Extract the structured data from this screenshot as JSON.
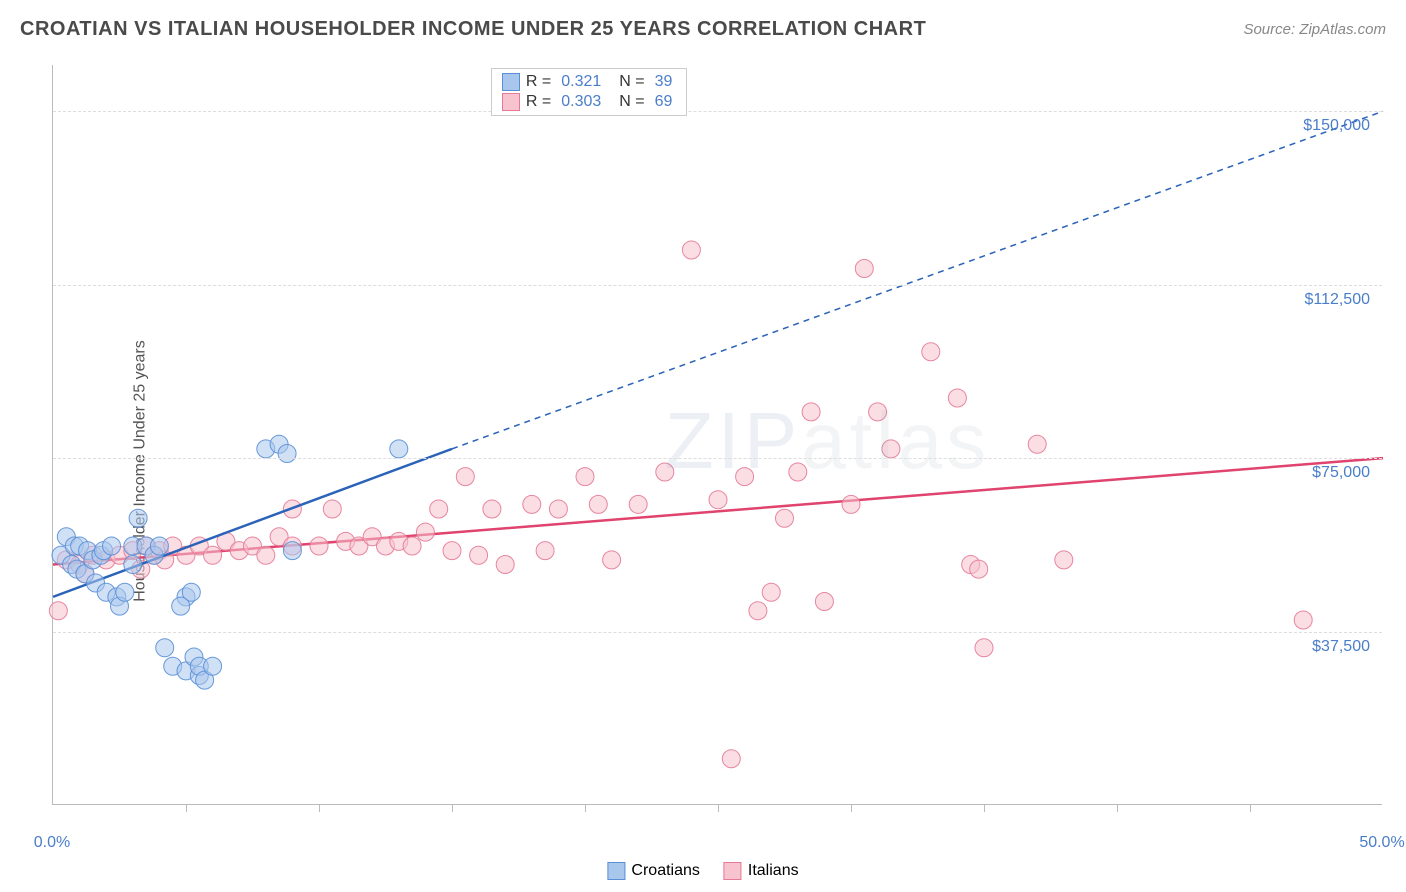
{
  "title": "CROATIAN VS ITALIAN HOUSEHOLDER INCOME UNDER 25 YEARS CORRELATION CHART",
  "source_label": "Source: ZipAtlas.com",
  "y_axis_label": "Householder Income Under 25 years",
  "watermark_text": "ZIPatlas",
  "chart": {
    "type": "scatter",
    "xlim": [
      0,
      50
    ],
    "ylim": [
      0,
      160000
    ],
    "x_tick_start_label": "0.0%",
    "x_tick_end_label": "50.0%",
    "x_tick_positions_pct": [
      5,
      10,
      15,
      20,
      25,
      30,
      35,
      40,
      45
    ],
    "y_ticks": [
      {
        "value": 37500,
        "label": "$37,500"
      },
      {
        "value": 75000,
        "label": "$75,000"
      },
      {
        "value": 112500,
        "label": "$112,500"
      },
      {
        "value": 150000,
        "label": "$150,000"
      }
    ],
    "background_color": "#ffffff",
    "grid_color": "#dddddd",
    "axis_color": "#bbbbbb",
    "tick_label_color": "#4a7ec9",
    "marker_radius": 9,
    "marker_opacity": 0.55,
    "marker_stroke_opacity": 0.9,
    "series": [
      {
        "name": "Croatians",
        "color_fill": "#a9c7ec",
        "color_stroke": "#5a8fd6",
        "r_value": "0.321",
        "n_value": "39",
        "trend": {
          "x1": 0,
          "y1": 45000,
          "x2_solid": 15,
          "y2_solid": 77000,
          "x2": 50,
          "y2": 150000,
          "color": "#2a63b8",
          "width": 2.5
        },
        "points": [
          [
            0.3,
            54000
          ],
          [
            0.5,
            58000
          ],
          [
            0.7,
            52000
          ],
          [
            0.8,
            56000
          ],
          [
            0.9,
            51000
          ],
          [
            1.0,
            56000
          ],
          [
            1.2,
            50000
          ],
          [
            1.3,
            55000
          ],
          [
            1.5,
            53000
          ],
          [
            1.6,
            48000
          ],
          [
            1.8,
            54000
          ],
          [
            1.9,
            55000
          ],
          [
            2.0,
            46000
          ],
          [
            2.2,
            56000
          ],
          [
            2.4,
            45000
          ],
          [
            2.5,
            43000
          ],
          [
            2.7,
            46000
          ],
          [
            3.0,
            52000
          ],
          [
            3.0,
            56000
          ],
          [
            3.2,
            62000
          ],
          [
            3.5,
            56000
          ],
          [
            3.8,
            54000
          ],
          [
            4.0,
            56000
          ],
          [
            5.0,
            45000
          ],
          [
            5.2,
            46000
          ],
          [
            4.2,
            34000
          ],
          [
            4.5,
            30000
          ],
          [
            5.0,
            29000
          ],
          [
            5.3,
            32000
          ],
          [
            5.5,
            28000
          ],
          [
            5.5,
            30000
          ],
          [
            5.7,
            27000
          ],
          [
            6.0,
            30000
          ],
          [
            4.8,
            43000
          ],
          [
            8.0,
            77000
          ],
          [
            8.5,
            78000
          ],
          [
            8.8,
            76000
          ],
          [
            9.0,
            55000
          ],
          [
            13.0,
            77000
          ]
        ]
      },
      {
        "name": "Italians",
        "color_fill": "#f6c3ce",
        "color_stroke": "#e67a96",
        "r_value": "0.303",
        "n_value": "69",
        "trend": {
          "x1": 0,
          "y1": 52000,
          "x2_solid": 50,
          "y2_solid": 75000,
          "x2": 50,
          "y2": 75000,
          "color": "#e0436d",
          "width": 2.5
        },
        "points": [
          [
            0.2,
            42000
          ],
          [
            0.5,
            53000
          ],
          [
            1.0,
            52000
          ],
          [
            1.2,
            50000
          ],
          [
            1.5,
            54000
          ],
          [
            2.0,
            53000
          ],
          [
            2.5,
            54000
          ],
          [
            3.0,
            55000
          ],
          [
            3.3,
            51000
          ],
          [
            3.5,
            56000
          ],
          [
            3.8,
            54000
          ],
          [
            4.0,
            55000
          ],
          [
            4.2,
            53000
          ],
          [
            4.5,
            56000
          ],
          [
            5.0,
            54000
          ],
          [
            5.5,
            56000
          ],
          [
            6.0,
            54000
          ],
          [
            6.5,
            57000
          ],
          [
            7.0,
            55000
          ],
          [
            7.5,
            56000
          ],
          [
            8.0,
            54000
          ],
          [
            8.5,
            58000
          ],
          [
            9.0,
            56000
          ],
          [
            9.0,
            64000
          ],
          [
            10.0,
            56000
          ],
          [
            10.5,
            64000
          ],
          [
            11.0,
            57000
          ],
          [
            11.5,
            56000
          ],
          [
            12.0,
            58000
          ],
          [
            12.5,
            56000
          ],
          [
            13.0,
            57000
          ],
          [
            13.5,
            56000
          ],
          [
            14.0,
            59000
          ],
          [
            14.5,
            64000
          ],
          [
            15.0,
            55000
          ],
          [
            15.5,
            71000
          ],
          [
            16.0,
            54000
          ],
          [
            16.5,
            64000
          ],
          [
            17.0,
            52000
          ],
          [
            18.0,
            65000
          ],
          [
            18.5,
            55000
          ],
          [
            19.0,
            64000
          ],
          [
            20.0,
            71000
          ],
          [
            20.5,
            65000
          ],
          [
            21.0,
            53000
          ],
          [
            22.0,
            65000
          ],
          [
            23.0,
            72000
          ],
          [
            24.0,
            120000
          ],
          [
            25.0,
            66000
          ],
          [
            26.0,
            71000
          ],
          [
            26.5,
            42000
          ],
          [
            27.0,
            46000
          ],
          [
            27.5,
            62000
          ],
          [
            28.0,
            72000
          ],
          [
            28.5,
            85000
          ],
          [
            29.0,
            44000
          ],
          [
            30.0,
            65000
          ],
          [
            30.5,
            116000
          ],
          [
            31.0,
            85000
          ],
          [
            31.5,
            77000
          ],
          [
            33.0,
            98000
          ],
          [
            34.0,
            88000
          ],
          [
            34.5,
            52000
          ],
          [
            35.0,
            34000
          ],
          [
            37.0,
            78000
          ],
          [
            38.0,
            53000
          ],
          [
            25.5,
            10000
          ],
          [
            47.0,
            40000
          ],
          [
            34.8,
            51000
          ]
        ]
      }
    ],
    "stats_legend": {
      "r_label": "R =",
      "n_label": "N ="
    },
    "bottom_legend": [
      {
        "label": "Croatians",
        "fill": "#a9c7ec",
        "stroke": "#5a8fd6"
      },
      {
        "label": "Italians",
        "fill": "#f6c3ce",
        "stroke": "#e67a96"
      }
    ]
  }
}
